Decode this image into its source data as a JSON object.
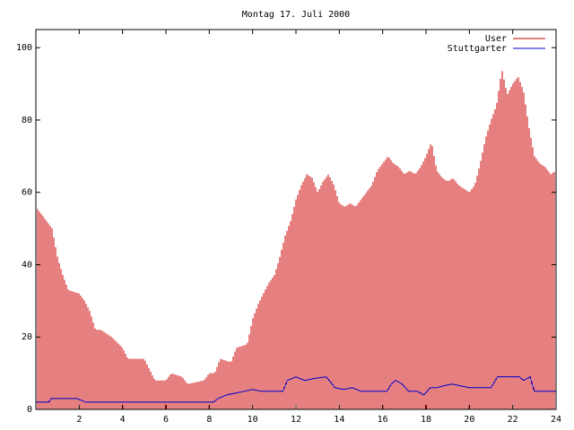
{
  "chart_data": {
    "type": "bar",
    "title": "Montag 17. Juli 2000",
    "xlabel": "",
    "ylabel": "",
    "xlim": [
      0,
      24
    ],
    "ylim": [
      0,
      105
    ],
    "x_ticks": [
      2,
      4,
      6,
      8,
      10,
      12,
      14,
      16,
      18,
      20,
      22,
      24
    ],
    "x_tick_labels": [
      "2",
      "4",
      "6",
      "8",
      "10",
      "12",
      "14",
      "16",
      "18",
      "20",
      "22",
      "24"
    ],
    "y_ticks": [
      0,
      20,
      40,
      60,
      80,
      100
    ],
    "y_tick_labels": [
      "0",
      "20",
      "40",
      "60",
      "80",
      "100"
    ],
    "grid": false,
    "legend_position": "top-right",
    "series": [
      {
        "name": "User",
        "style": "impulses",
        "color": "#cc0000",
        "points": [
          [
            0,
            56
          ],
          [
            0.5,
            52
          ],
          [
            0.75,
            50
          ],
          [
            1,
            42
          ],
          [
            1.25,
            37
          ],
          [
            1.5,
            33
          ],
          [
            2,
            32
          ],
          [
            2.25,
            30
          ],
          [
            2.5,
            27
          ],
          [
            2.75,
            22
          ],
          [
            3,
            22
          ],
          [
            3.25,
            21
          ],
          [
            3.5,
            20
          ],
          [
            4,
            17
          ],
          [
            4.25,
            14
          ],
          [
            5,
            14
          ],
          [
            5.25,
            11
          ],
          [
            5.5,
            8
          ],
          [
            6,
            8
          ],
          [
            6.25,
            10
          ],
          [
            6.75,
            9
          ],
          [
            7,
            7
          ],
          [
            7.75,
            8
          ],
          [
            8,
            10
          ],
          [
            8.25,
            10
          ],
          [
            8.5,
            14
          ],
          [
            9,
            13
          ],
          [
            9.25,
            17
          ],
          [
            9.75,
            18
          ],
          [
            10,
            25
          ],
          [
            10.25,
            29
          ],
          [
            10.5,
            32
          ],
          [
            10.75,
            35
          ],
          [
            11,
            37
          ],
          [
            11.25,
            42
          ],
          [
            11.5,
            48
          ],
          [
            11.75,
            52
          ],
          [
            12,
            58
          ],
          [
            12.25,
            62
          ],
          [
            12.5,
            65
          ],
          [
            12.75,
            64
          ],
          [
            13,
            60
          ],
          [
            13.25,
            63
          ],
          [
            13.5,
            65
          ],
          [
            13.75,
            62
          ],
          [
            14,
            57
          ],
          [
            14.25,
            56
          ],
          [
            14.5,
            57
          ],
          [
            14.75,
            56
          ],
          [
            15,
            58
          ],
          [
            15.25,
            60
          ],
          [
            15.5,
            62
          ],
          [
            15.75,
            66
          ],
          [
            16,
            68
          ],
          [
            16.25,
            70
          ],
          [
            16.5,
            68
          ],
          [
            16.75,
            67
          ],
          [
            17,
            65
          ],
          [
            17.25,
            66
          ],
          [
            17.5,
            65
          ],
          [
            17.75,
            67
          ],
          [
            18,
            70
          ],
          [
            18.25,
            74
          ],
          [
            18.5,
            66
          ],
          [
            18.75,
            64
          ],
          [
            19,
            63
          ],
          [
            19.25,
            64
          ],
          [
            19.5,
            62
          ],
          [
            19.75,
            61
          ],
          [
            20,
            60
          ],
          [
            20.25,
            62
          ],
          [
            20.5,
            68
          ],
          [
            20.75,
            75
          ],
          [
            21,
            80
          ],
          [
            21.25,
            84
          ],
          [
            21.5,
            94
          ],
          [
            21.75,
            87
          ],
          [
            22,
            90
          ],
          [
            22.25,
            92
          ],
          [
            22.5,
            88
          ],
          [
            22.75,
            78
          ],
          [
            23,
            70
          ],
          [
            23.25,
            68
          ],
          [
            23.5,
            67
          ],
          [
            23.75,
            65
          ],
          [
            24,
            66
          ]
        ]
      },
      {
        "name": "Stuttgarter",
        "style": "lines",
        "color": "#0000cc",
        "points": [
          [
            0,
            2
          ],
          [
            0.6,
            2
          ],
          [
            0.7,
            3
          ],
          [
            1.5,
            3
          ],
          [
            1.9,
            3
          ],
          [
            2.1,
            2.5
          ],
          [
            2.3,
            2
          ],
          [
            8.2,
            2
          ],
          [
            8.4,
            3
          ],
          [
            8.8,
            4
          ],
          [
            9.2,
            4.5
          ],
          [
            9.6,
            5
          ],
          [
            10,
            5.5
          ],
          [
            10.4,
            5
          ],
          [
            11.4,
            5
          ],
          [
            11.6,
            8
          ],
          [
            12,
            9
          ],
          [
            12.4,
            8
          ],
          [
            12.8,
            8.5
          ],
          [
            13.4,
            9
          ],
          [
            13.8,
            6
          ],
          [
            14.2,
            5.5
          ],
          [
            14.6,
            6
          ],
          [
            15,
            5
          ],
          [
            16.2,
            5
          ],
          [
            16.4,
            7
          ],
          [
            16.6,
            8
          ],
          [
            16.9,
            7
          ],
          [
            17.2,
            5
          ],
          [
            17.6,
            5
          ],
          [
            17.9,
            4
          ],
          [
            18.2,
            6
          ],
          [
            18.5,
            6
          ],
          [
            18.8,
            6.5
          ],
          [
            19.2,
            7
          ],
          [
            19.6,
            6.5
          ],
          [
            20,
            6
          ],
          [
            21,
            6
          ],
          [
            21.3,
            9
          ],
          [
            21.8,
            9
          ],
          [
            22.3,
            9
          ],
          [
            22.5,
            8
          ],
          [
            22.8,
            9
          ],
          [
            23,
            5
          ],
          [
            24,
            5
          ]
        ]
      }
    ]
  }
}
